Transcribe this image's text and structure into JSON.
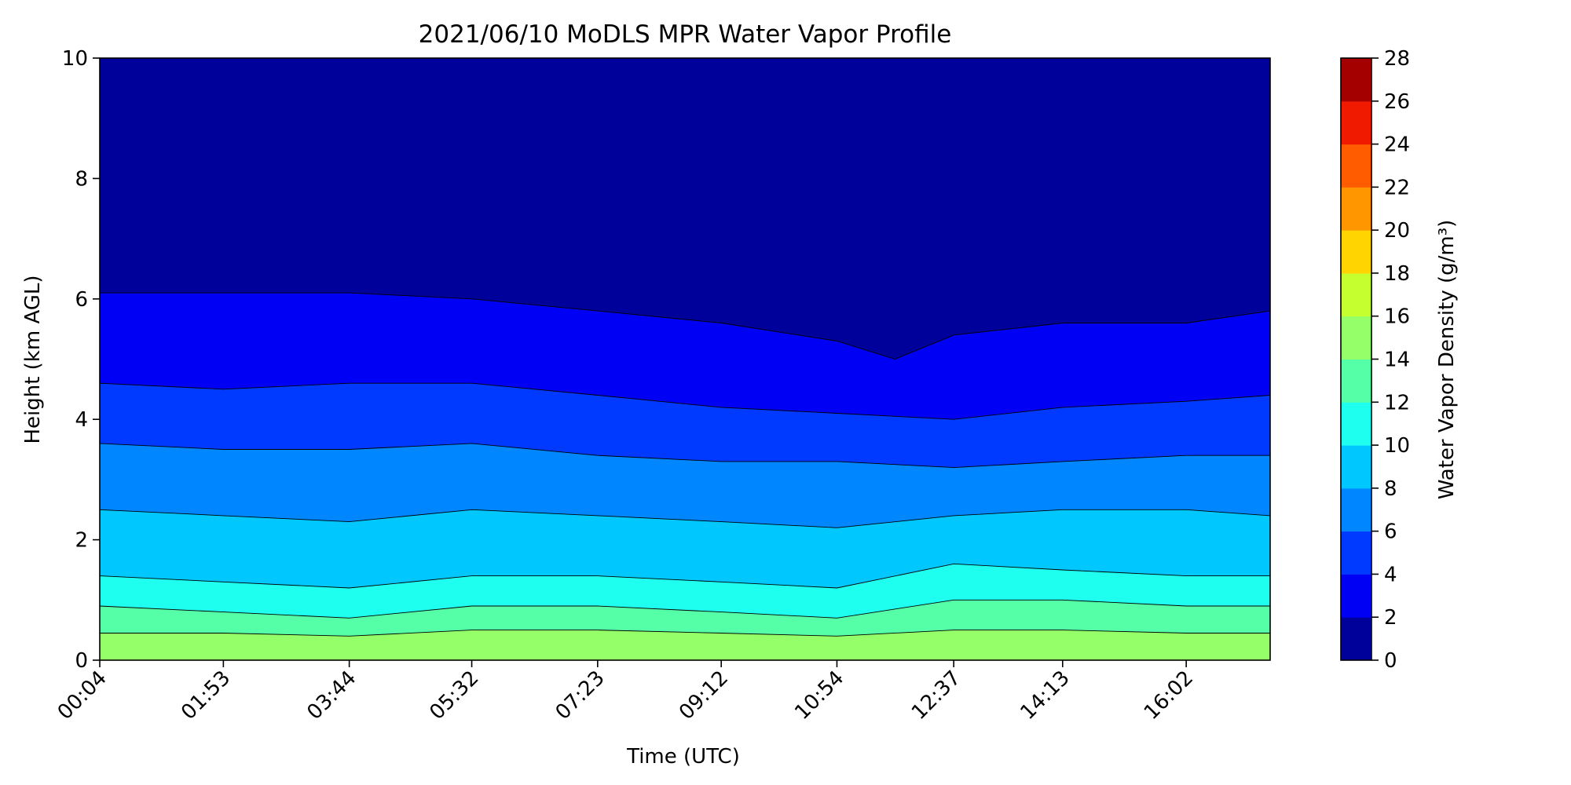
{
  "chart_data": {
    "type": "contourf",
    "title": "2021/06/10 MoDLS MPR Water Vapor Profile",
    "xlabel": "Time (UTC)",
    "ylabel": "Height (km AGL)",
    "colorbar_label": "Water Vapor Density (g/m³)",
    "x_ticks": [
      "00:04",
      "01:53",
      "03:44",
      "05:32",
      "07:23",
      "09:12",
      "10:54",
      "12:37",
      "14:13",
      "16:02"
    ],
    "x_range": [
      "00:04",
      "17:16"
    ],
    "ylim": [
      0,
      10
    ],
    "y_ticks": [
      0,
      2,
      4,
      6,
      8,
      10
    ],
    "levels": [
      0,
      2,
      4,
      6,
      8,
      10,
      12,
      14,
      16,
      18,
      20,
      22,
      24,
      26,
      28
    ],
    "level_colors": [
      "#00009a",
      "#0000f5",
      "#0039ff",
      "#0086ff",
      "#00c8ff",
      "#1ffff0",
      "#55ffa7",
      "#94ff68",
      "#c6ff30",
      "#ffd400",
      "#ff9600",
      "#ff5c00",
      "#f01a00",
      "#a50000"
    ],
    "contour_heights_km": {
      "2": {
        "x": [
          "00:04",
          "01:53",
          "03:44",
          "05:32",
          "07:23",
          "09:12",
          "10:54",
          "11:45",
          "12:37",
          "14:13",
          "16:02",
          "17:16"
        ],
        "y": [
          6.1,
          6.1,
          6.1,
          6.0,
          5.8,
          5.6,
          5.3,
          5.0,
          5.4,
          5.6,
          5.6,
          5.8
        ]
      },
      "4": {
        "x": [
          "00:04",
          "01:53",
          "03:44",
          "05:32",
          "07:23",
          "09:12",
          "10:54",
          "12:37",
          "14:13",
          "16:02",
          "17:16"
        ],
        "y": [
          4.6,
          4.5,
          4.6,
          4.6,
          4.4,
          4.2,
          4.1,
          4.0,
          4.2,
          4.3,
          4.4
        ]
      },
      "6": {
        "x": [
          "00:04",
          "01:53",
          "03:44",
          "05:32",
          "07:23",
          "09:12",
          "10:54",
          "12:37",
          "14:13",
          "16:02",
          "17:16"
        ],
        "y": [
          3.6,
          3.5,
          3.5,
          3.6,
          3.4,
          3.3,
          3.3,
          3.2,
          3.3,
          3.4,
          3.4
        ]
      },
      "8": {
        "x": [
          "00:04",
          "01:53",
          "03:44",
          "05:32",
          "07:23",
          "09:12",
          "10:54",
          "12:37",
          "14:13",
          "16:02",
          "17:16"
        ],
        "y": [
          2.5,
          2.4,
          2.3,
          2.5,
          2.4,
          2.3,
          2.2,
          2.4,
          2.5,
          2.5,
          2.4
        ]
      },
      "10": {
        "x": [
          "00:04",
          "01:53",
          "03:44",
          "05:32",
          "07:23",
          "09:12",
          "10:54",
          "12:37",
          "14:13",
          "16:02",
          "17:16"
        ],
        "y": [
          1.4,
          1.3,
          1.2,
          1.4,
          1.4,
          1.3,
          1.2,
          1.6,
          1.5,
          1.4,
          1.4
        ]
      },
      "12": {
        "x": [
          "00:04",
          "01:53",
          "03:44",
          "05:32",
          "07:23",
          "09:12",
          "10:54",
          "12:37",
          "14:13",
          "16:02",
          "17:16"
        ],
        "y": [
          0.9,
          0.8,
          0.7,
          0.9,
          0.9,
          0.8,
          0.7,
          1.0,
          1.0,
          0.9,
          0.9
        ]
      },
      "14": {
        "x": [
          "00:04",
          "01:53",
          "03:44",
          "05:32",
          "07:23",
          "09:12",
          "10:54",
          "12:37",
          "14:13",
          "16:02",
          "17:16"
        ],
        "y": [
          0.45,
          0.45,
          0.4,
          0.5,
          0.5,
          0.45,
          0.4,
          0.5,
          0.5,
          0.45,
          0.45
        ]
      }
    },
    "grid": false,
    "legend": "colorbar-right"
  }
}
